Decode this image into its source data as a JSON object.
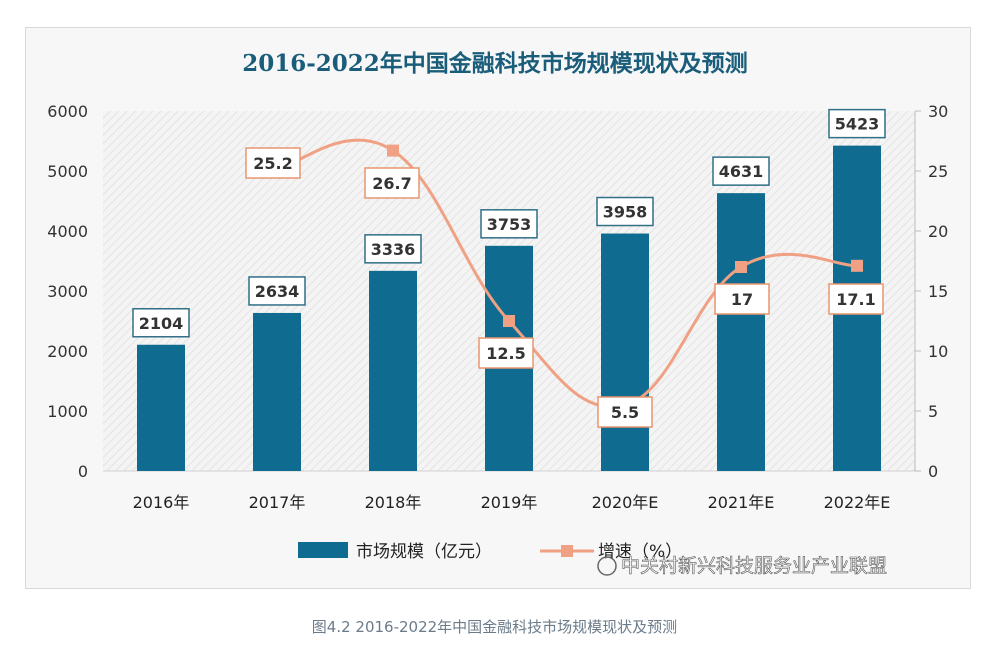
{
  "chart_data": {
    "type": "bar",
    "title": "2016-2022年中国金融科技市场规模现状及预测",
    "categories": [
      "2016年",
      "2017年",
      "2018年",
      "2019年",
      "2020年E",
      "2021年E",
      "2022年E"
    ],
    "series": [
      {
        "name": "市场规模（亿元）",
        "type": "bar",
        "axis": "left",
        "values": [
          2104,
          2634,
          3336,
          3753,
          3958,
          4631,
          5423
        ]
      },
      {
        "name": "增速（%）",
        "type": "line",
        "axis": "right",
        "values": [
          null,
          25.2,
          26.7,
          12.5,
          5.5,
          17,
          17.1
        ]
      }
    ],
    "bar_labels": [
      "2104",
      "2634",
      "3336",
      "3753",
      "3958",
      "4631",
      "5423"
    ],
    "line_labels": [
      "",
      "25.2",
      "26.7",
      "12.5",
      "5.5",
      "17",
      "17.1"
    ],
    "ylim": [
      0,
      6000
    ],
    "y2lim": [
      0,
      30
    ],
    "yticks": [
      "0",
      "1000",
      "2000",
      "3000",
      "4000",
      "5000",
      "6000"
    ],
    "y2ticks": [
      "0",
      "5",
      "10",
      "15",
      "20",
      "25",
      "30"
    ],
    "legend": "bottom",
    "colors": {
      "bar": "#0f6b8f",
      "line": "#f0a184",
      "title": "#1a5d7a",
      "bar_label_border": "#2f6f87",
      "line_label_border": "#e8956f"
    }
  },
  "watermark": "中关村新兴科技服务业产业联盟",
  "caption": "图4.2 2016-2022年中国金融科技市场规模现状及预测"
}
